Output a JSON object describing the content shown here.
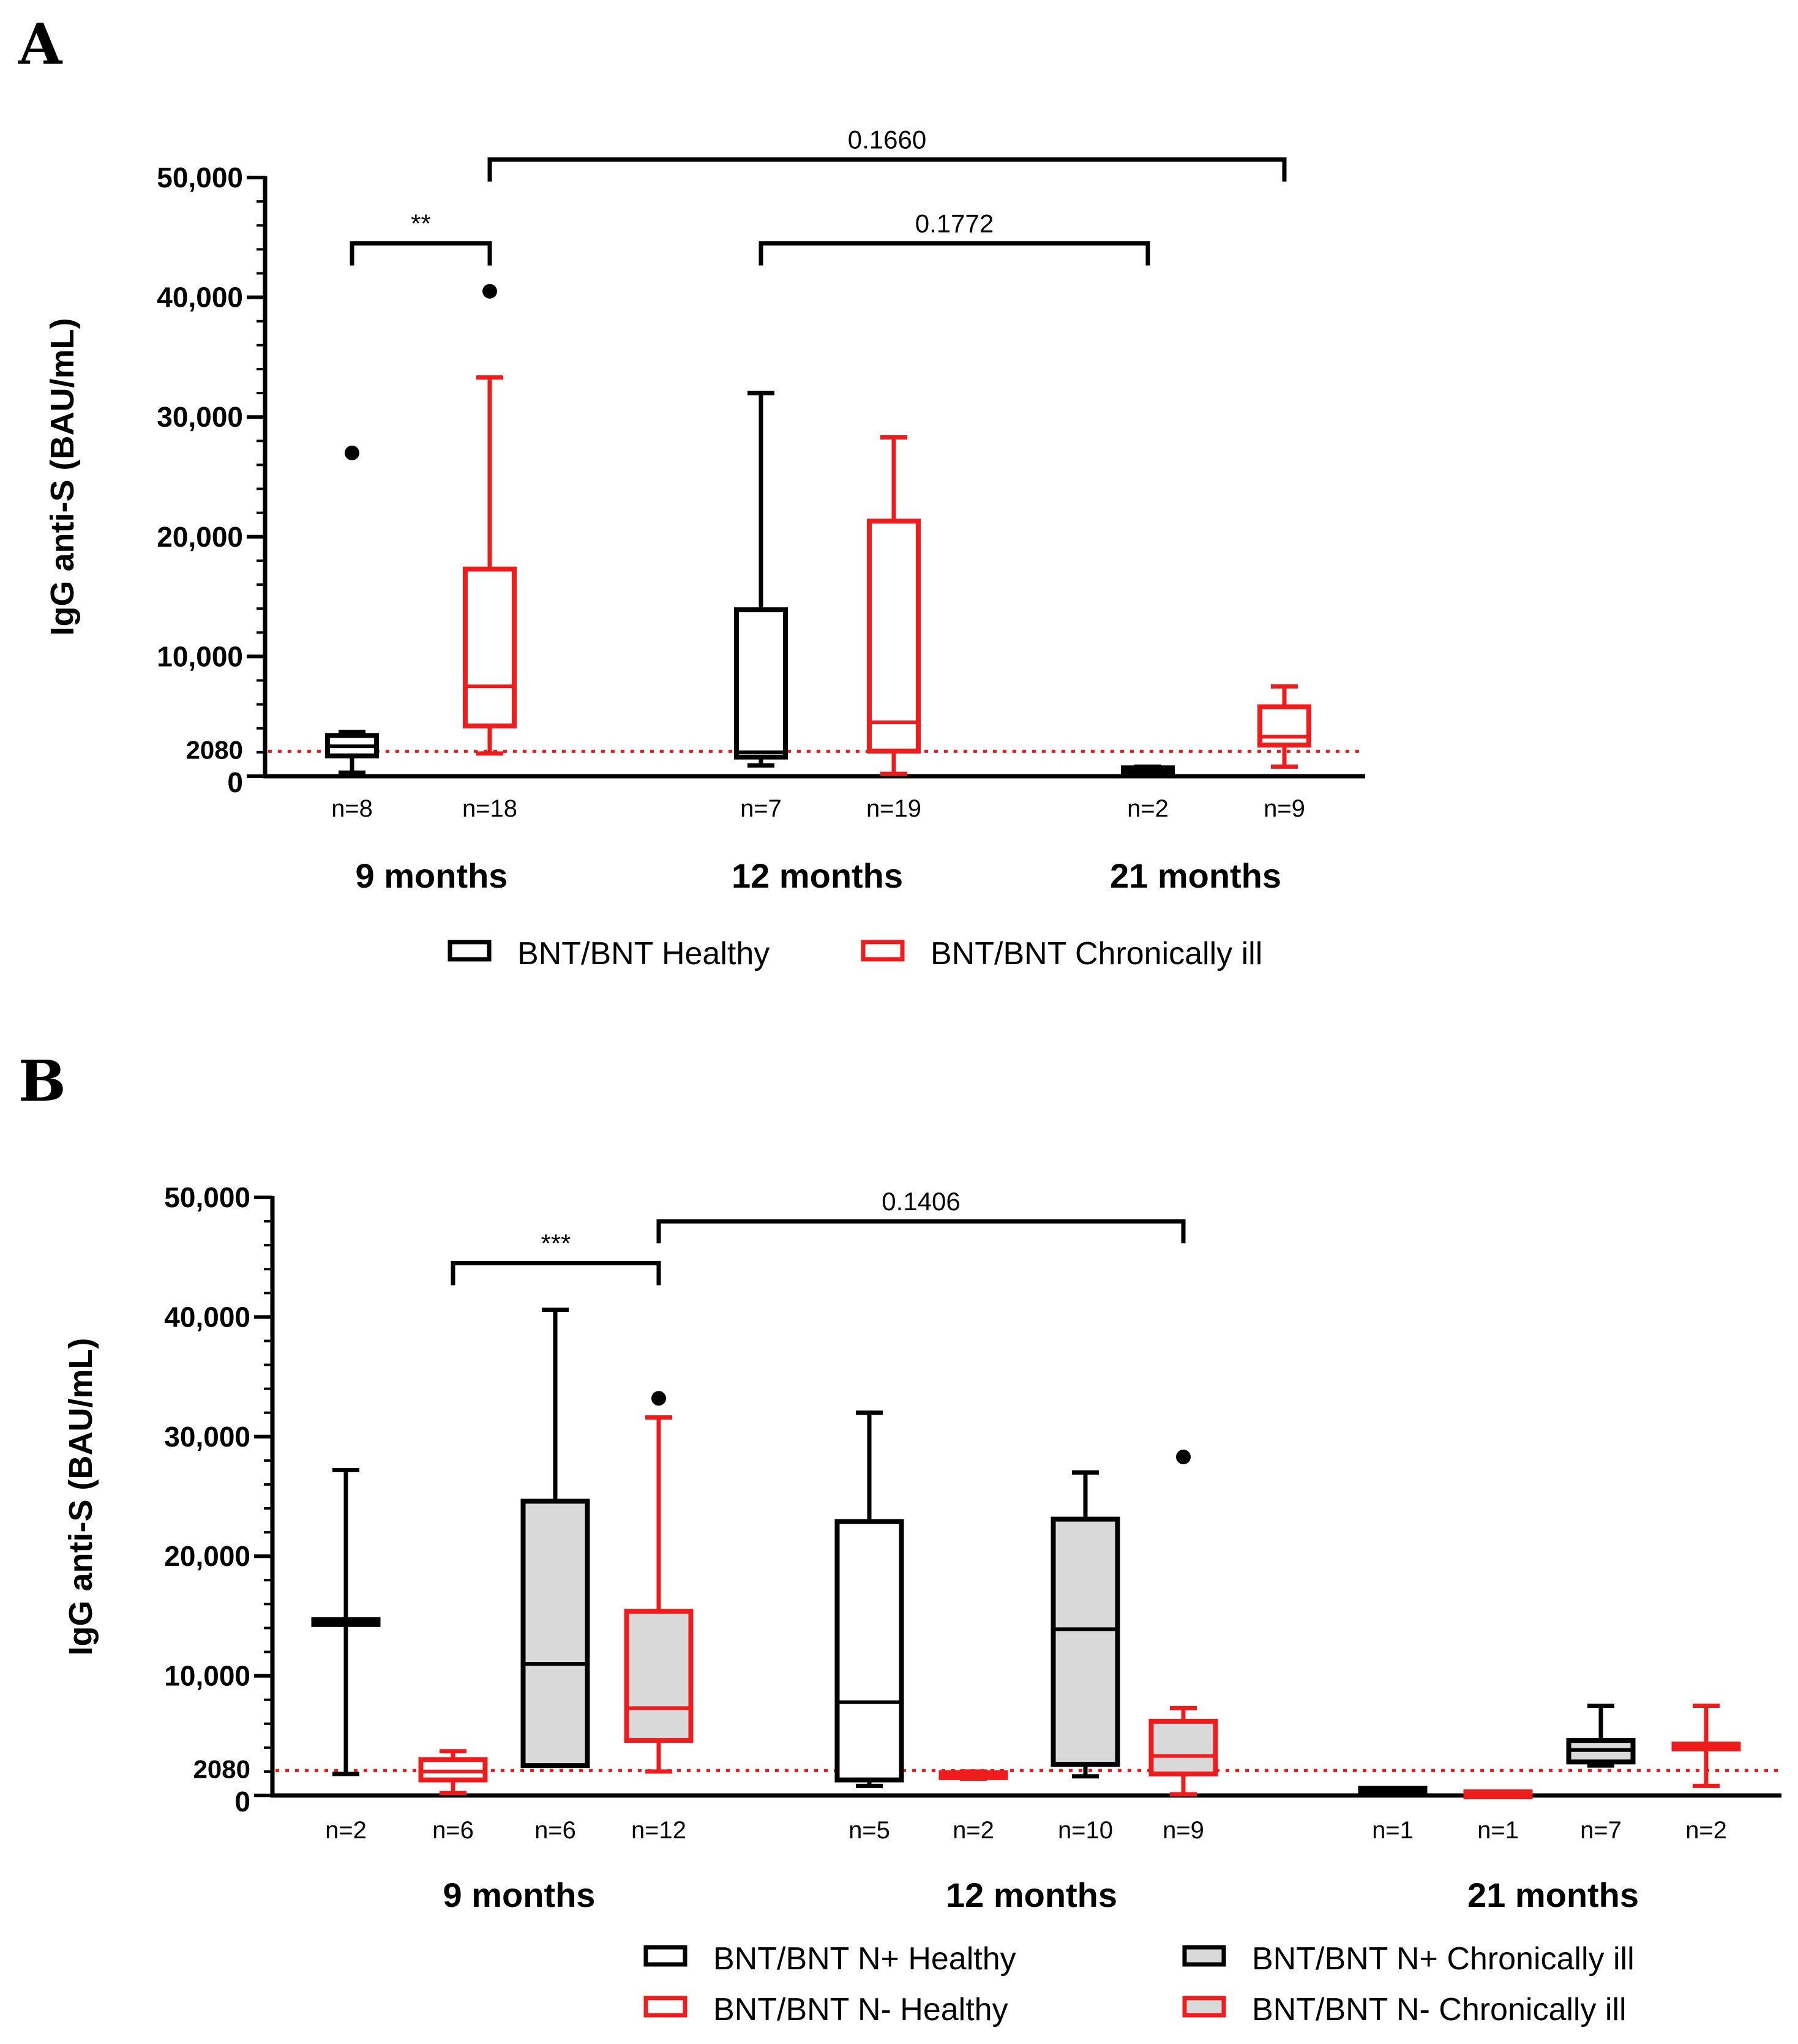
{
  "panels": [
    {
      "letter": "A"
    },
    {
      "letter": "B"
    }
  ],
  "colors": {
    "black": "#000000",
    "red": "#ee1c1c",
    "gray_fill": "#d9d9d9",
    "threshold": "#ee1c1c"
  },
  "chart_data": [
    {
      "type": "box",
      "panel": "A",
      "ylabel": "IgG anti-S (BAU/mL)",
      "ylim": [
        0,
        50000
      ],
      "yticks": [
        0,
        10000,
        20000,
        30000,
        40000,
        50000
      ],
      "ytick_labels": [
        "0",
        "10,000",
        "20,000",
        "30,000",
        "40,000",
        "50,000"
      ],
      "threshold": {
        "value": 2080,
        "label": "2080"
      },
      "groups": [
        {
          "label": "9 months"
        },
        {
          "label": "12 months"
        },
        {
          "label": "21 months"
        }
      ],
      "boxes": [
        {
          "series": 0,
          "n": "n=8",
          "min": 300,
          "q1": 1700,
          "median": 2500,
          "q3": 3400,
          "max": 3700,
          "outliers": [
            27000
          ]
        },
        {
          "series": 1,
          "n": "n=18",
          "min": 1900,
          "q1": 4200,
          "median": 7500,
          "q3": 17300,
          "max": 33300,
          "outliers": [
            40500
          ]
        },
        {
          "series": 0,
          "n": "n=7",
          "min": 900,
          "q1": 1600,
          "median": 2000,
          "q3": 13900,
          "max": 32000,
          "outliers": []
        },
        {
          "series": 1,
          "n": "n=19",
          "min": 200,
          "q1": 2100,
          "median": 4500,
          "q3": 21300,
          "max": 28300,
          "outliers": []
        },
        {
          "series": 0,
          "n": "n=2",
          "min": 300,
          "q1": 400,
          "median": 550,
          "q3": 700,
          "max": 800,
          "outliers": []
        },
        {
          "series": 1,
          "n": "n=9",
          "min": 800,
          "q1": 2600,
          "median": 3300,
          "q3": 5800,
          "max": 7500,
          "outliers": []
        }
      ],
      "series": [
        {
          "name": "BNT/BNT Healthy",
          "color": "#000000",
          "fill": "#ffffff"
        },
        {
          "name": "BNT/BNT Chronically ill",
          "color": "#ee1c1c",
          "fill": "#ffffff"
        }
      ],
      "brackets": [
        {
          "from": 0,
          "to": 1,
          "label": "**",
          "level": 44500
        },
        {
          "from": 1,
          "to": 5,
          "label": "0.1660",
          "level": 51500
        },
        {
          "from": 2,
          "to": 4,
          "label": "0.1772",
          "level": 44500
        }
      ]
    },
    {
      "type": "box",
      "panel": "B",
      "ylabel": "IgG anti-S (BAU/mL)",
      "ylim": [
        0,
        50000
      ],
      "yticks": [
        0,
        10000,
        20000,
        30000,
        40000,
        50000
      ],
      "ytick_labels": [
        "0",
        "10,000",
        "20,000",
        "30,000",
        "40,000",
        "50,000"
      ],
      "threshold": {
        "value": 2080,
        "label": "2080"
      },
      "groups": [
        {
          "label": "9 months"
        },
        {
          "label": "12 months"
        },
        {
          "label": "21 months"
        }
      ],
      "boxes": [
        {
          "series": 0,
          "n": "n=2",
          "min": 1800,
          "q1": 14300,
          "median": 14500,
          "q3": 14700,
          "max": 27200,
          "outliers": []
        },
        {
          "series": 1,
          "n": "n=6",
          "min": 200,
          "q1": 1300,
          "median": 2000,
          "q3": 3000,
          "max": 3700,
          "outliers": []
        },
        {
          "series": 2,
          "n": "n=6",
          "min": 2500,
          "q1": 2500,
          "median": 11000,
          "q3": 24600,
          "max": 40600,
          "outliers": []
        },
        {
          "series": 3,
          "n": "n=12",
          "min": 2000,
          "q1": 4600,
          "median": 7300,
          "q3": 15400,
          "max": 31600,
          "outliers": [
            33200
          ]
        },
        {
          "series": 0,
          "n": "n=5",
          "min": 800,
          "q1": 1300,
          "median": 7800,
          "q3": 22900,
          "max": 32000,
          "outliers": []
        },
        {
          "series": 1,
          "n": "n=2",
          "min": 1400,
          "q1": 1500,
          "median": 1700,
          "q3": 1900,
          "max": 2000,
          "outliers": []
        },
        {
          "series": 2,
          "n": "n=10",
          "min": 1600,
          "q1": 2600,
          "median": 13900,
          "q3": 23100,
          "max": 27000,
          "outliers": []
        },
        {
          "series": 3,
          "n": "n=9",
          "min": 100,
          "q1": 1800,
          "median": 3300,
          "q3": 6200,
          "max": 7300,
          "outliers": [
            28300
          ]
        },
        {
          "series": 0,
          "n": "n=1",
          "min": 600,
          "q1": 600,
          "median": 600,
          "q3": 600,
          "max": 600,
          "outliers": []
        },
        {
          "series": 1,
          "n": "n=1",
          "min": 300,
          "q1": 300,
          "median": 300,
          "q3": 300,
          "max": 300,
          "outliers": []
        },
        {
          "series": 2,
          "n": "n=7",
          "min": 2500,
          "q1": 2800,
          "median": 3800,
          "q3": 4600,
          "max": 7500,
          "outliers": []
        },
        {
          "series": 3,
          "n": "n=2",
          "min": 800,
          "q1": 3900,
          "median": 4100,
          "q3": 4300,
          "max": 7500,
          "outliers": []
        }
      ],
      "series": [
        {
          "name": "BNT/BNT N+ Healthy",
          "color": "#000000",
          "fill": "#ffffff"
        },
        {
          "name": "BNT/BNT N- Healthy",
          "color": "#ee1c1c",
          "fill": "#ffffff"
        },
        {
          "name": "BNT/BNT N+ Chronically ill",
          "color": "#000000",
          "fill": "#d9d9d9"
        },
        {
          "name": "BNT/BNT N- Chronically ill",
          "color": "#ee1c1c",
          "fill": "#d9d9d9"
        }
      ],
      "brackets": [
        {
          "from": 1,
          "to": 3,
          "label": "***",
          "level": 44500
        },
        {
          "from": 3,
          "to": 7,
          "label": "0.1406",
          "level": 48000
        }
      ]
    }
  ]
}
